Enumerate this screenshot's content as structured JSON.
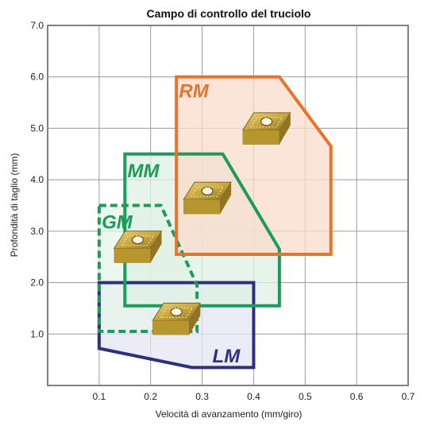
{
  "chart_data": {
    "type": "area",
    "title": "Campo di controllo del truciolo",
    "xlabel": "Velocità di avanzamento (mm/giro)",
    "ylabel": "Profondità di taglio (mm)",
    "xlim": [
      0,
      0.7
    ],
    "ylim": [
      0,
      7.0
    ],
    "x_ticks": [
      "0.1",
      "0.2",
      "0.3",
      "0.4",
      "0.5",
      "0.6",
      "0.7"
    ],
    "y_ticks": [
      "1.0",
      "2.0",
      "3.0",
      "4.0",
      "5.0",
      "6.0",
      "7.0"
    ],
    "grid": true,
    "series": [
      {
        "name": "RM",
        "color": "#e8732a",
        "fill": "#f9dccb",
        "dashed": false,
        "polygon": [
          [
            0.25,
            6.0
          ],
          [
            0.45,
            6.0
          ],
          [
            0.55,
            4.65
          ],
          [
            0.55,
            2.55
          ],
          [
            0.25,
            2.55
          ]
        ]
      },
      {
        "name": "MM",
        "color": "#1e9a5a",
        "fill": "#dff0e4",
        "dashed": false,
        "polygon": [
          [
            0.15,
            4.5
          ],
          [
            0.34,
            4.5
          ],
          [
            0.45,
            2.65
          ],
          [
            0.45,
            1.55
          ],
          [
            0.15,
            1.55
          ]
        ]
      },
      {
        "name": "GM",
        "color": "#1e9a5a",
        "fill": "#e6f4ea",
        "dashed": true,
        "polygon": [
          [
            0.1,
            3.5
          ],
          [
            0.22,
            3.5
          ],
          [
            0.29,
            1.95
          ],
          [
            0.29,
            1.05
          ],
          [
            0.1,
            1.05
          ]
        ]
      },
      {
        "name": "LM",
        "color": "#2e2f7f",
        "fill": "#e4e5f3",
        "dashed": false,
        "polygon": [
          [
            0.1,
            2.0
          ],
          [
            0.4,
            2.0
          ],
          [
            0.4,
            0.35
          ],
          [
            0.28,
            0.35
          ],
          [
            0.1,
            0.72
          ]
        ]
      }
    ],
    "label_positions": {
      "RM": [
        0.255,
        5.6
      ],
      "MM": [
        0.155,
        4.05
      ],
      "GM": [
        0.105,
        3.05
      ],
      "LM": [
        0.32,
        0.45
      ]
    },
    "inserts": [
      {
        "region": "RM",
        "center": [
          0.425,
          4.9
        ]
      },
      {
        "region": "MM",
        "center": [
          0.31,
          3.55
        ]
      },
      {
        "region": "GM",
        "center": [
          0.175,
          2.6
        ]
      },
      {
        "region": "LM",
        "center": [
          0.25,
          1.2
        ]
      }
    ]
  }
}
